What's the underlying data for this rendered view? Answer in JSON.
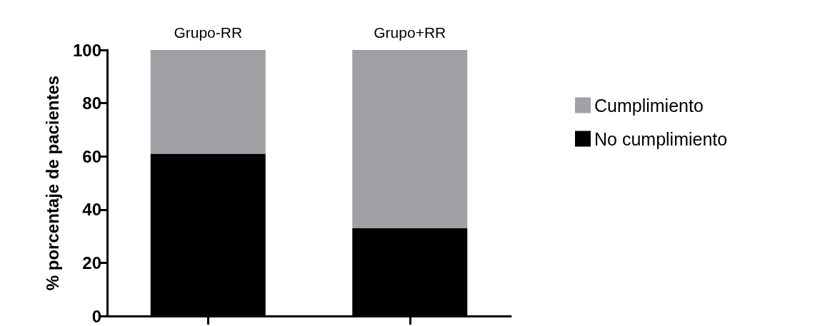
{
  "chart_data": {
    "type": "bar",
    "stacked": true,
    "categories": [
      "Grupo-RR",
      "Grupo+RR"
    ],
    "ylabel": "% porcentaje de pacientes",
    "ylim": [
      0,
      100
    ],
    "yticks": [
      0,
      20,
      40,
      60,
      80,
      100
    ],
    "legend": "right",
    "grid": false,
    "series": [
      {
        "name": "No cumplimiento",
        "color": "#000000",
        "values": [
          61,
          33
        ]
      },
      {
        "name": "Cumplimiento",
        "color": "#a1a0a5",
        "values": [
          39,
          67
        ]
      }
    ]
  }
}
